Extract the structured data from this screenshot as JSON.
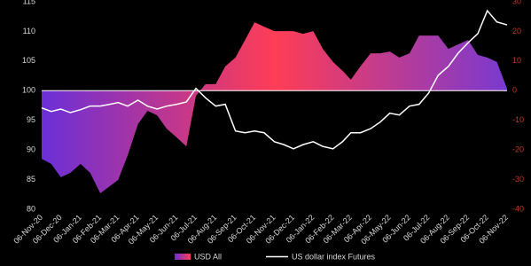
{
  "chart_data": {
    "type": "area-line",
    "x": [
      "06-Nov-20",
      "21-Nov-20",
      "06-Dec-20",
      "21-Dec-20",
      "06-Jan-21",
      "21-Jan-21",
      "06-Feb-21",
      "21-Feb-21",
      "06-Mar-21",
      "21-Mar-21",
      "06-Apr-21",
      "21-Apr-21",
      "06-May-21",
      "21-May-21",
      "06-Jun-21",
      "21-Jun-21",
      "06-Jul-21",
      "21-Jul-21",
      "06-Aug-21",
      "21-Aug-21",
      "06-Sep-21",
      "21-Sep-21",
      "06-Oct-21",
      "21-Oct-21",
      "06-Nov-21",
      "21-Nov-21",
      "06-Dec-21",
      "21-Dec-21",
      "06-Jan-22",
      "21-Jan-22",
      "06-Feb-22",
      "21-Feb-22",
      "06-Mar-22",
      "21-Mar-22",
      "06-Apr-22",
      "21-Apr-22",
      "06-May-22",
      "21-May-22",
      "06-Jun-22",
      "21-Jun-22",
      "06-Jul-22",
      "21-Jul-22",
      "06-Aug-22",
      "21-Aug-22",
      "06-Sep-22",
      "21-Sep-22",
      "06-Oct-22",
      "21-Oct-22",
      "06-Nov-22"
    ],
    "xlim": [
      "06-Nov-20",
      "06-Nov-22"
    ],
    "xticks": [
      "06-Nov-20",
      "06-Dec-20",
      "06-Jan-21",
      "06-Feb-21",
      "06-Mar-21",
      "06-Apr-21",
      "06-May-21",
      "06-Jun-21",
      "06-Jul-21",
      "06-Aug-21",
      "06-Sep-21",
      "06-Oct-21",
      "06-Nov-21",
      "06-Dec-21",
      "06-Jan-22",
      "06-Feb-22",
      "06-Mar-22",
      "06-Apr-22",
      "06-May-22",
      "06-Jun-22",
      "06-Jul-22",
      "06-Aug-22",
      "06-Sep-22",
      "06-Oct-22",
      "06-Nov-22"
    ],
    "ylim": [
      80,
      115
    ],
    "yticks": [
      80,
      85,
      90,
      95,
      100,
      105,
      110,
      115
    ],
    "y2lim": [
      -40,
      30
    ],
    "y2ticks": [
      -40,
      -30,
      -20,
      -10,
      0,
      10,
      20,
      30
    ],
    "series": [
      {
        "name": "USD All",
        "kind": "area",
        "axis": "y2",
        "color": [
          "#6b2fd8",
          "#ff3d55",
          "#7a3ad0"
        ],
        "values": [
          -23,
          -24.7,
          -29.2,
          -27.7,
          -24.7,
          -27.7,
          -34.6,
          -32.2,
          -30.1,
          -21.8,
          -11.3,
          -6.8,
          -8.3,
          -12.8,
          -15.8,
          -18.8,
          -1.7,
          2.2,
          2.2,
          8.2,
          11.2,
          17.1,
          23.1,
          21.6,
          20.1,
          20.1,
          20.1,
          19.2,
          20.1,
          14.1,
          9.7,
          6.7,
          3.7,
          8.2,
          12.6,
          12.6,
          13.2,
          11.2,
          12.6,
          18.6,
          18.6,
          18.6,
          14.1,
          15.6,
          17.1,
          12.1,
          11.2,
          9.7,
          0.7
        ]
      },
      {
        "name": "US dollar index Futures",
        "kind": "line",
        "color": "#ffffff",
        "values": [
          97.1,
          96.5,
          96.9,
          96.3,
          96.8,
          97.4,
          97.4,
          97.7,
          98,
          97.4,
          98.4,
          97.4,
          96.9,
          97.4,
          97.7,
          98.1,
          100.4,
          98.8,
          97.4,
          97.7,
          93.2,
          92.9,
          93.2,
          92.9,
          91.4,
          90.9,
          90.2,
          90.9,
          91.4,
          90.6,
          90.2,
          91.4,
          92.9,
          92.9,
          93.6,
          94.7,
          96.2,
          95.9,
          97.4,
          97.7,
          99.6,
          102.6,
          104.1,
          106.3,
          108.1,
          109.6,
          113.5,
          111.6,
          111.1
        ]
      }
    ]
  }
}
